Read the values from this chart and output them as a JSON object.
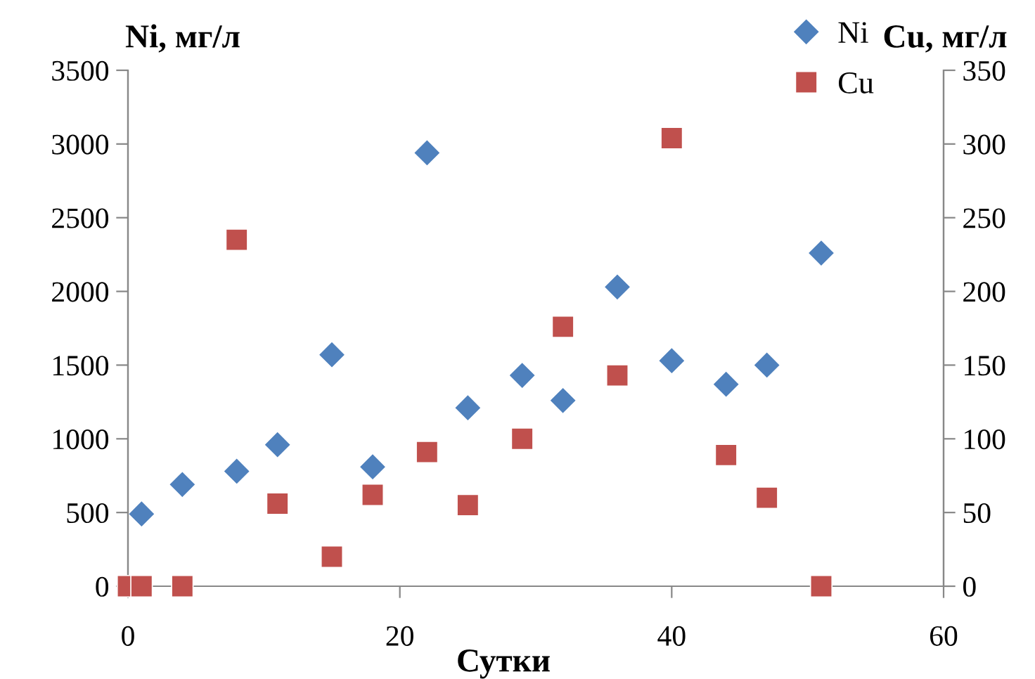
{
  "chart_data": {
    "type": "scatter",
    "xlabel": "Сутки",
    "ylabel": "Ni, мг/л",
    "y2label": "Cu, мг/л",
    "xlim": [
      0,
      60
    ],
    "xticks": [
      0,
      20,
      40,
      60
    ],
    "ylim": [
      0,
      3500
    ],
    "yticks": [
      0,
      500,
      1000,
      1500,
      2000,
      2500,
      3000,
      3500
    ],
    "y2lim": [
      0,
      350
    ],
    "y2ticks": [
      0,
      50,
      100,
      150,
      200,
      250,
      300,
      350
    ],
    "grid": false,
    "legend": "top right",
    "series": [
      {
        "name": "Ni",
        "color": "#4f81bd",
        "marker": "diamond",
        "x": [
          1,
          4,
          8,
          11,
          15,
          18,
          22,
          25,
          29,
          32,
          36,
          40,
          44,
          47,
          51
        ],
        "values": [
          490,
          690,
          780,
          960,
          1570,
          810,
          2940,
          1210,
          1430,
          1260,
          2030,
          1530,
          1370,
          1500,
          2260
        ]
      },
      {
        "name": "Cu",
        "color": "#c0504d",
        "marker": "square",
        "axis": "y2",
        "x": [
          0,
          1,
          4,
          8,
          11,
          15,
          18,
          22,
          25,
          29,
          32,
          36,
          40,
          44,
          47,
          51
        ],
        "values": [
          0,
          0,
          0,
          235,
          56,
          20,
          62,
          91,
          55,
          100,
          176,
          143,
          304,
          89,
          60,
          0
        ]
      }
    ]
  }
}
